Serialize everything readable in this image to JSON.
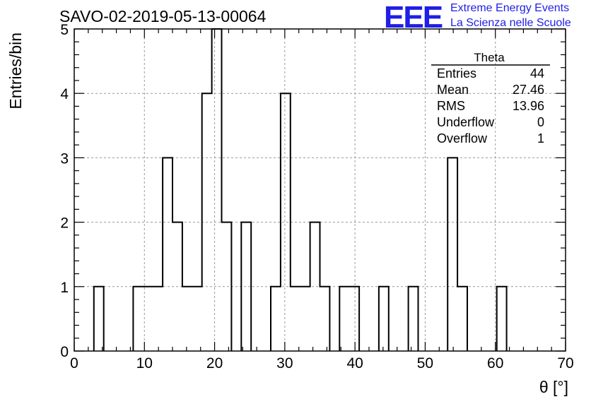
{
  "title": "SAVO-02-2019-05-13-00064",
  "logo": {
    "mark": "EEE",
    "line1": "Extreme Energy Events",
    "line2": "La Scienza nelle Scuole",
    "color": "#1f1fe6"
  },
  "stats": {
    "name": "Theta",
    "rows": [
      {
        "label": "Entries",
        "value": "44"
      },
      {
        "label": "Mean",
        "value": "27.46"
      },
      {
        "label": "RMS",
        "value": "13.96"
      },
      {
        "label": "Underflow",
        "value": "0"
      },
      {
        "label": "Overflow",
        "value": "1"
      }
    ]
  },
  "chart_data": {
    "type": "bar",
    "style": "step-histogram",
    "xlabel": "θ [°]",
    "ylabel": "Entries/bin",
    "xlim": [
      0,
      70
    ],
    "ylim": [
      0,
      5
    ],
    "xticks": [
      0,
      10,
      20,
      30,
      40,
      50,
      60,
      70
    ],
    "yticks": [
      0,
      1,
      2,
      3,
      4,
      5
    ],
    "grid": true,
    "bin_width": 1.4,
    "bins": [
      {
        "x0": 2.8,
        "value": 1
      },
      {
        "x0": 8.4,
        "value": 1
      },
      {
        "x0": 9.8,
        "value": 1
      },
      {
        "x0": 11.2,
        "value": 1
      },
      {
        "x0": 12.6,
        "value": 3
      },
      {
        "x0": 14.0,
        "value": 2
      },
      {
        "x0": 15.4,
        "value": 1
      },
      {
        "x0": 16.8,
        "value": 1
      },
      {
        "x0": 18.2,
        "value": 4
      },
      {
        "x0": 19.6,
        "value": 5
      },
      {
        "x0": 21.0,
        "value": 2
      },
      {
        "x0": 23.8,
        "value": 2
      },
      {
        "x0": 28.0,
        "value": 1
      },
      {
        "x0": 29.4,
        "value": 4
      },
      {
        "x0": 30.8,
        "value": 1
      },
      {
        "x0": 32.2,
        "value": 1
      },
      {
        "x0": 33.6,
        "value": 2
      },
      {
        "x0": 35.0,
        "value": 1
      },
      {
        "x0": 37.8,
        "value": 1
      },
      {
        "x0": 39.2,
        "value": 1
      },
      {
        "x0": 43.4,
        "value": 1
      },
      {
        "x0": 47.6,
        "value": 1
      },
      {
        "x0": 53.2,
        "value": 3
      },
      {
        "x0": 54.6,
        "value": 1
      },
      {
        "x0": 60.2,
        "value": 1
      }
    ]
  }
}
